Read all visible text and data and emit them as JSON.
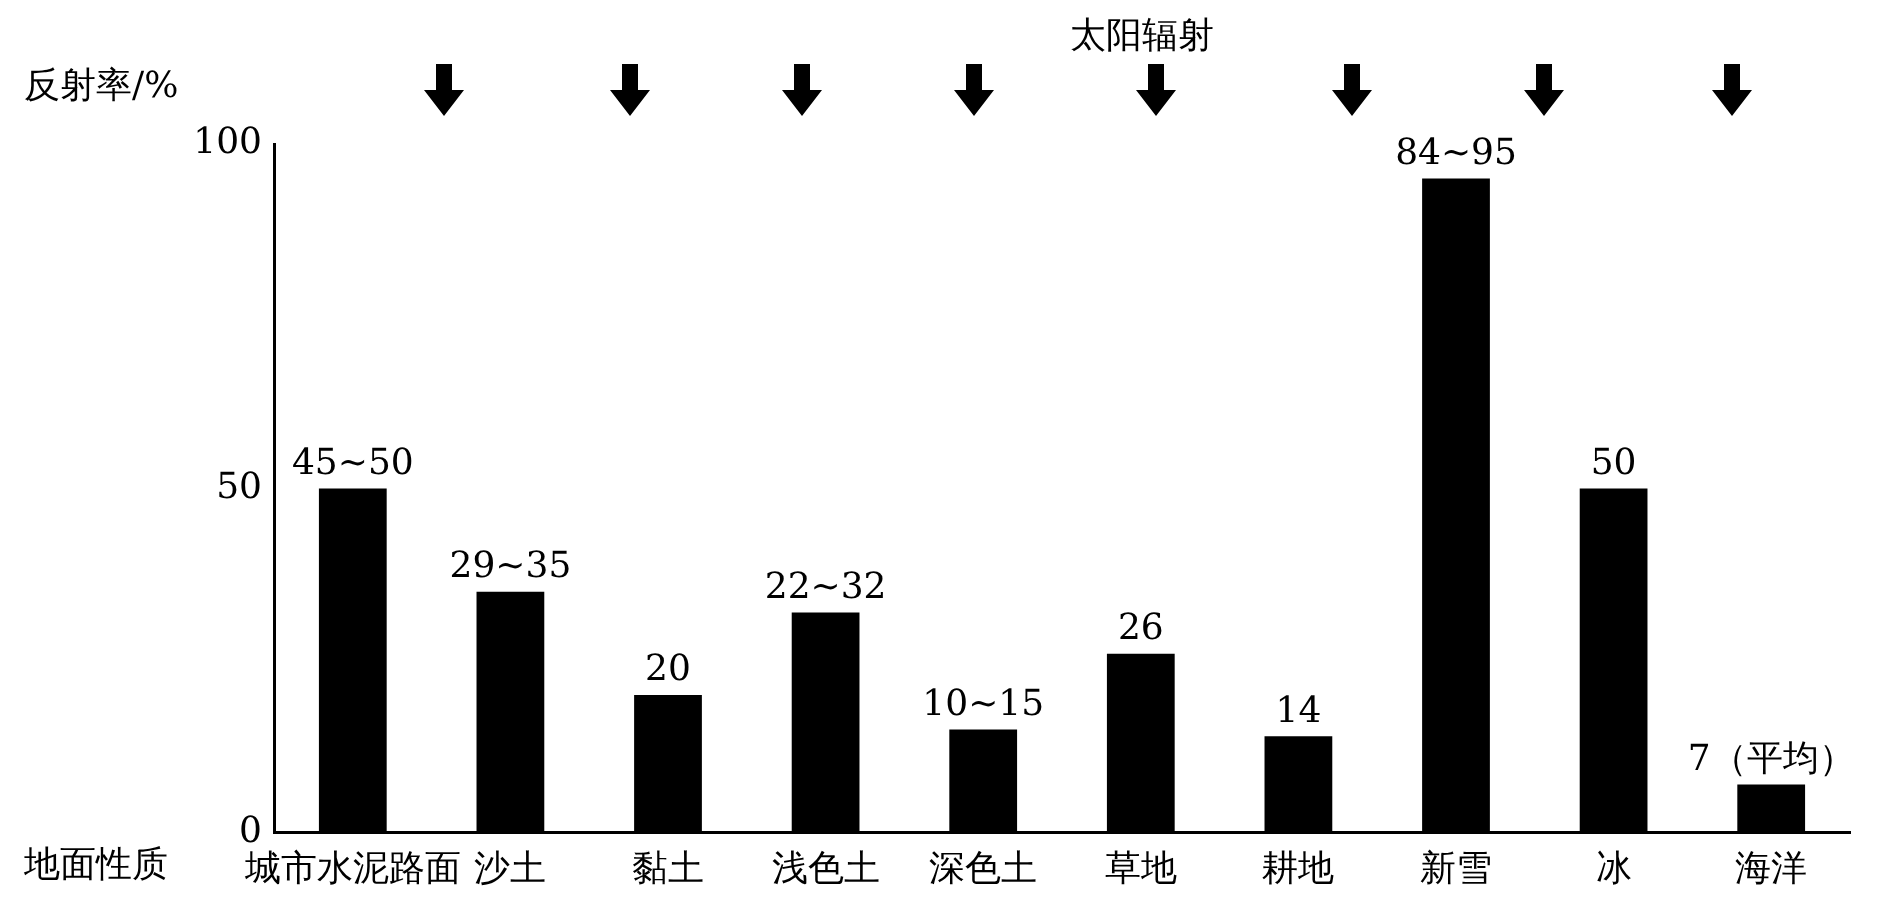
{
  "chart_data": {
    "type": "bar",
    "ylabel": "反射率/%",
    "xlabel": "地面性质",
    "annotations": [
      "太阳辐射"
    ],
    "categories": [
      "城市水泥路面",
      "沙土",
      "黏土",
      "浅色土",
      "深色土",
      "草地",
      "耕地",
      "新雪",
      "冰",
      "海洋"
    ],
    "values": [
      50,
      35,
      20,
      32,
      15,
      26,
      14,
      95,
      50,
      7
    ],
    "value_labels": [
      "45~50",
      "29~35",
      "20",
      "22~32",
      "10~15",
      "26",
      "14",
      "84~95",
      "50",
      "7（平均）"
    ],
    "color": "#000000",
    "ylim": [
      0,
      100
    ],
    "yticks": [
      0,
      50,
      100
    ]
  }
}
